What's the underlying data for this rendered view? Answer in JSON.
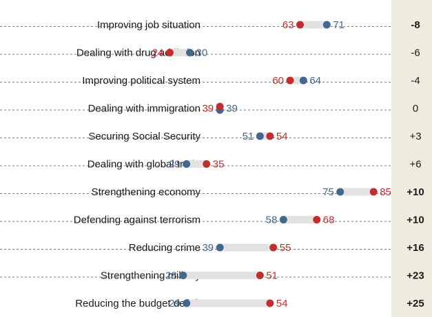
{
  "chart_data": {
    "type": "dot",
    "colors": {
      "blue": "#44688d",
      "red": "#bf2f2f",
      "track": "#e2e2e2",
      "diff_bg": "#edecdf"
    },
    "rows": [
      {
        "label": "Improving job situation",
        "blue": 71,
        "red": 63,
        "diff": "-8",
        "bold": true
      },
      {
        "label": "Dealing with drug addiction",
        "blue": 30,
        "red": 24,
        "diff": "-6",
        "bold": false
      },
      {
        "label": "Improving political system",
        "blue": 64,
        "red": 60,
        "diff": "-4",
        "bold": false
      },
      {
        "label": "Dealing with immigration",
        "blue": 39,
        "red": 39,
        "diff": "0",
        "bold": false
      },
      {
        "label": "Securing Social Security",
        "blue": 51,
        "red": 54,
        "diff": "+3",
        "bold": false
      },
      {
        "label": "Dealing with global trade",
        "blue": 29,
        "red": 35,
        "diff": "+6",
        "bold": false
      },
      {
        "label": "Strengthening economy",
        "blue": 75,
        "red": 85,
        "diff": "+10",
        "bold": true
      },
      {
        "label": "Defending against terrorism",
        "blue": 58,
        "red": 68,
        "diff": "+10",
        "bold": true
      },
      {
        "label": "Reducing crime",
        "blue": 39,
        "red": 55,
        "diff": "+16",
        "bold": true
      },
      {
        "label": "Strengthening military",
        "blue": 28,
        "red": 51,
        "diff": "+23",
        "bold": true
      },
      {
        "label": "Reducing the budget deficit",
        "blue": 29,
        "red": 54,
        "diff": "+25",
        "bold": true
      }
    ]
  }
}
